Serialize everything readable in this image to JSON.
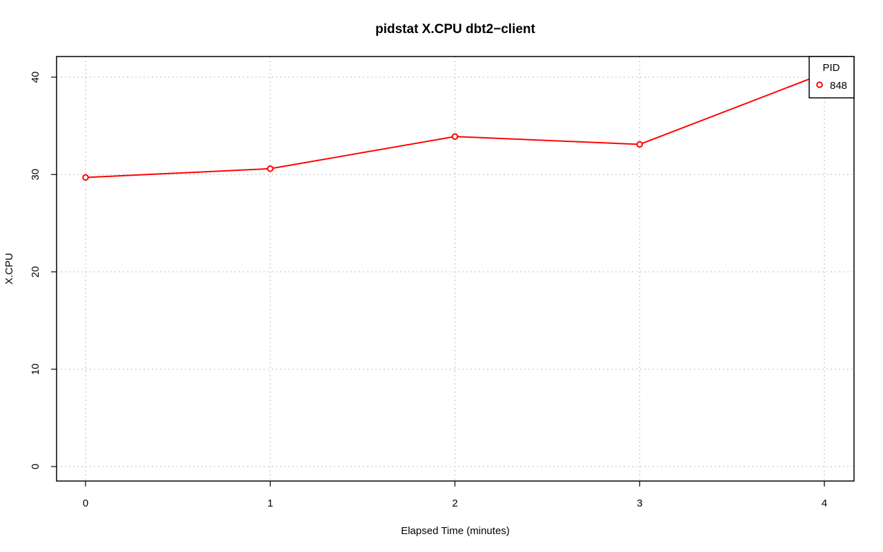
{
  "chart_data": {
    "type": "line",
    "title": "pidstat X.CPU dbt2−client",
    "xlabel": "Elapsed Time (minutes)",
    "ylabel": "X.CPU",
    "xlim": [
      0,
      4
    ],
    "ylim": [
      0,
      40
    ],
    "x_ticks": [
      0,
      1,
      2,
      3,
      4
    ],
    "y_ticks": [
      0,
      10,
      20,
      30,
      40
    ],
    "grid": true,
    "legend_position": "top-right",
    "legend_title": "PID",
    "series": [
      {
        "name": "848",
        "color": "#ff0000",
        "x": [
          0,
          1,
          2,
          3,
          4
        ],
        "y": [
          29.7,
          30.6,
          33.9,
          33.1,
          40.4
        ]
      }
    ]
  }
}
